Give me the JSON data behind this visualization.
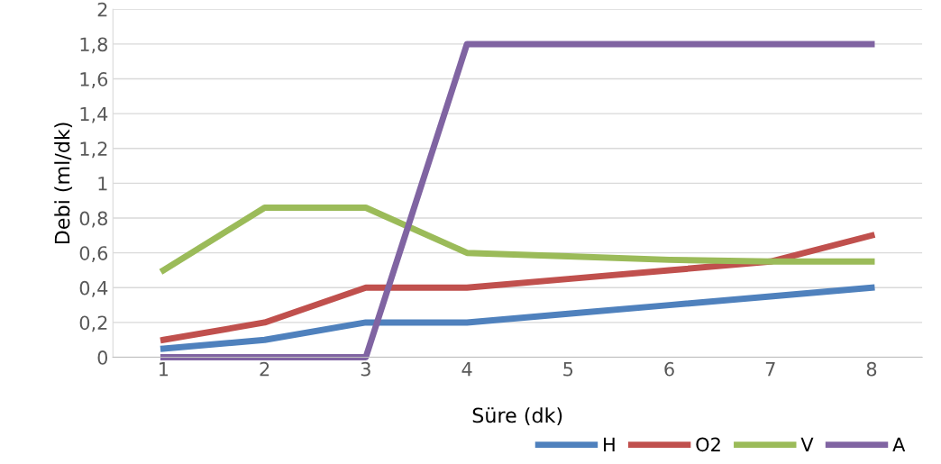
{
  "chart_data": {
    "type": "line",
    "xlabel": "Süre (dk)",
    "ylabel": "Debi (ml/dk)",
    "categories": [
      "1",
      "2",
      "3",
      "4",
      "5",
      "6",
      "7",
      "8"
    ],
    "series": [
      {
        "name": "H",
        "color": "#4f81bd",
        "values": [
          0.05,
          0.1,
          0.2,
          0.2,
          0.25,
          0.3,
          0.35,
          0.4
        ]
      },
      {
        "name": "O2",
        "color": "#c0504d",
        "values": [
          0.1,
          0.2,
          0.4,
          0.4,
          0.45,
          0.5,
          0.55,
          0.7
        ]
      },
      {
        "name": "V",
        "color": "#9bbb59",
        "values": [
          0.5,
          0.86,
          0.86,
          0.6,
          0.58,
          0.56,
          0.55,
          0.55
        ]
      },
      {
        "name": "A",
        "color": "#8064a2",
        "values": [
          0,
          0,
          0,
          1.8,
          1.8,
          1.8,
          1.8,
          1.8
        ]
      }
    ],
    "ylim": [
      0,
      2
    ],
    "yticks": [
      0,
      {
        "value": 0.2,
        "label": "0,2"
      },
      {
        "value": 0.4,
        "label": "0,4"
      },
      {
        "value": 0.6,
        "label": "0,6"
      },
      {
        "value": 0.8,
        "label": "0,8"
      },
      1,
      {
        "value": 1.2,
        "label": "1,2"
      },
      {
        "value": 1.4,
        "label": "1,4"
      },
      {
        "value": 1.6,
        "label": "1,6"
      },
      {
        "value": 1.8,
        "label": "1,8"
      },
      2
    ],
    "grid": "y",
    "legend": "bottom right",
    "line_style": "solid"
  }
}
